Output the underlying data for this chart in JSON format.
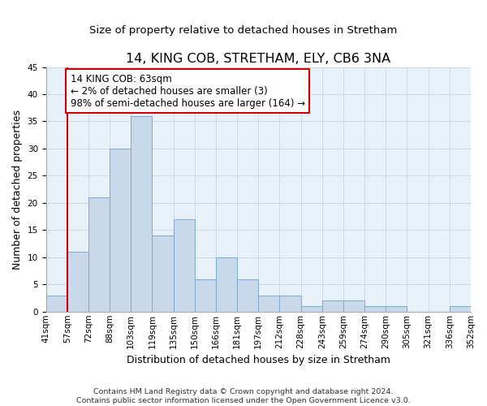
{
  "title": "14, KING COB, STRETHAM, ELY, CB6 3NA",
  "subtitle": "Size of property relative to detached houses in Stretham",
  "xlabel": "Distribution of detached houses by size in Stretham",
  "ylabel": "Number of detached properties",
  "bar_values": [
    3,
    11,
    21,
    30,
    36,
    14,
    17,
    6,
    10,
    6,
    3,
    3,
    1,
    2,
    2,
    1,
    1,
    0,
    0,
    1
  ],
  "bin_labels": [
    "41sqm",
    "57sqm",
    "72sqm",
    "88sqm",
    "103sqm",
    "119sqm",
    "135sqm",
    "150sqm",
    "166sqm",
    "181sqm",
    "197sqm",
    "212sqm",
    "228sqm",
    "243sqm",
    "259sqm",
    "274sqm",
    "290sqm",
    "305sqm",
    "321sqm",
    "336sqm",
    "352sqm"
  ],
  "bar_color": "#c9d9ec",
  "bar_edge_color": "#7faacc",
  "ylim_max": 45,
  "yticks": [
    0,
    5,
    10,
    15,
    20,
    25,
    30,
    35,
    40,
    45
  ],
  "red_line_x": 1,
  "annotation_line1": "14 KING COB: 63sqm",
  "annotation_line2": "← 2% of detached houses are smaller (3)",
  "annotation_line3": "98% of semi-detached houses are larger (164) →",
  "red_line_color": "#cc0000",
  "annotation_box_color": "#ffffff",
  "annotation_box_edge": "#cc0000",
  "grid_color": "#ccd9e8",
  "bg_color": "#e8f0f8",
  "title_fontsize": 11.5,
  "subtitle_fontsize": 9.5,
  "tick_fontsize": 7.5,
  "ylabel_fontsize": 9,
  "xlabel_fontsize": 9,
  "annotation_fontsize": 8.5,
  "footnote_fontsize": 6.8,
  "footnote_line1": "Contains HM Land Registry data © Crown copyright and database right 2024.",
  "footnote_line2": "Contains public sector information licensed under the Open Government Licence v3.0."
}
